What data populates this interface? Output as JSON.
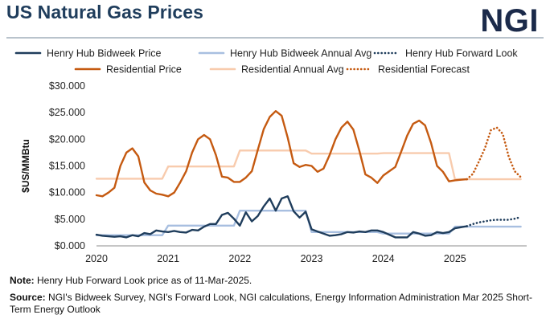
{
  "title": "US Natural Gas Prices",
  "logo_text": "NGI",
  "note": {
    "label": "Note:",
    "text": "Henry Hub Forward Look price as of 11-Mar-2025."
  },
  "source": {
    "label": "Source:",
    "text": "NGI's Bidweek Survey, NGI's Forward Look, NGI calculations, Energy Information Administration Mar 2025 Short-Term Energy Outlook"
  },
  "chart_data": {
    "type": "line",
    "ylabel": "$US/MMBtu",
    "xlabel": "",
    "ylim": [
      0,
      30
    ],
    "xlim": [
      2020.0,
      2026.0
    ],
    "y_ticks": [
      {
        "value": 0,
        "label": "$0.000"
      },
      {
        "value": 5,
        "label": "$5.000"
      },
      {
        "value": 10,
        "label": "$10.000"
      },
      {
        "value": 15,
        "label": "$15.000"
      },
      {
        "value": 20,
        "label": "$20.000"
      },
      {
        "value": 25,
        "label": "$25.000"
      },
      {
        "value": 30,
        "label": "$30.000"
      }
    ],
    "x_ticks": [
      {
        "value": 2020,
        "label": "2020"
      },
      {
        "value": 2021,
        "label": "2021"
      },
      {
        "value": 2022,
        "label": "2022"
      },
      {
        "value": 2023,
        "label": "2023"
      },
      {
        "value": 2024,
        "label": "2024"
      },
      {
        "value": 2025,
        "label": "2025"
      }
    ],
    "grid": false,
    "legend_position": "top",
    "series": [
      {
        "name": "Henry Hub Bidweek Price",
        "color": "#1f3d5c",
        "style": "solid",
        "x": [
          2020.0,
          2020.083,
          2020.167,
          2020.25,
          2020.333,
          2020.417,
          2020.5,
          2020.583,
          2020.667,
          2020.75,
          2020.833,
          2020.917,
          2021.0,
          2021.083,
          2021.167,
          2021.25,
          2021.333,
          2021.417,
          2021.5,
          2021.583,
          2021.667,
          2021.75,
          2021.833,
          2021.917,
          2022.0,
          2022.083,
          2022.167,
          2022.25,
          2022.333,
          2022.417,
          2022.5,
          2022.583,
          2022.667,
          2022.75,
          2022.833,
          2022.917,
          2023.0,
          2023.083,
          2023.167,
          2023.25,
          2023.333,
          2023.417,
          2023.5,
          2023.583,
          2023.667,
          2023.75,
          2023.833,
          2023.917,
          2024.0,
          2024.083,
          2024.167,
          2024.25,
          2024.333,
          2024.417,
          2024.5,
          2024.583,
          2024.667,
          2024.75,
          2024.833,
          2024.917,
          2025.0,
          2025.083,
          2025.167
        ],
        "y": [
          2.1,
          1.9,
          1.8,
          1.7,
          1.8,
          1.6,
          2.0,
          1.8,
          2.4,
          2.2,
          2.9,
          2.7,
          2.6,
          2.8,
          2.6,
          2.5,
          3.0,
          2.9,
          3.6,
          4.1,
          4.1,
          5.8,
          6.2,
          5.1,
          3.8,
          6.3,
          4.6,
          5.6,
          7.4,
          8.9,
          6.6,
          8.9,
          9.3,
          6.5,
          5.3,
          6.4,
          3.1,
          2.7,
          2.3,
          1.9,
          2.0,
          2.2,
          2.6,
          2.5,
          2.7,
          2.6,
          2.9,
          2.9,
          2.6,
          2.1,
          1.6,
          1.6,
          1.6,
          2.6,
          2.3,
          1.9,
          2.0,
          2.6,
          2.4,
          2.6,
          3.3,
          3.5,
          3.7
        ]
      },
      {
        "name": "Henry Hub Bidweek Annual Avg",
        "color": "#a8bfe0",
        "style": "solid",
        "x": [
          2020.0,
          2020.917,
          2021.0,
          2021.917,
          2022.0,
          2022.917,
          2023.0,
          2023.917,
          2024.0,
          2024.917,
          2025.0,
          2025.917
        ],
        "y": [
          2.0,
          2.0,
          3.8,
          3.8,
          6.6,
          6.6,
          2.6,
          2.6,
          2.3,
          2.3,
          3.6,
          3.6
        ]
      },
      {
        "name": "Henry Hub Forward Look",
        "color": "#1f3d5c",
        "style": "dotted",
        "x": [
          2025.167,
          2025.25,
          2025.333,
          2025.417,
          2025.5,
          2025.583,
          2025.667,
          2025.75,
          2025.833,
          2025.917
        ],
        "y": [
          3.7,
          4.1,
          4.4,
          4.6,
          4.8,
          4.9,
          4.9,
          4.9,
          5.1,
          5.4
        ]
      },
      {
        "name": "Residential Price",
        "color": "#c55a11",
        "style": "solid",
        "x": [
          2020.0,
          2020.083,
          2020.167,
          2020.25,
          2020.333,
          2020.417,
          2020.5,
          2020.583,
          2020.667,
          2020.75,
          2020.833,
          2020.917,
          2021.0,
          2021.083,
          2021.167,
          2021.25,
          2021.333,
          2021.417,
          2021.5,
          2021.583,
          2021.667,
          2021.75,
          2021.833,
          2021.917,
          2022.0,
          2022.083,
          2022.167,
          2022.25,
          2022.333,
          2022.417,
          2022.5,
          2022.583,
          2022.667,
          2022.75,
          2022.833,
          2022.917,
          2023.0,
          2023.083,
          2023.167,
          2023.25,
          2023.333,
          2023.417,
          2023.5,
          2023.583,
          2023.667,
          2023.75,
          2023.833,
          2023.917,
          2024.0,
          2024.083,
          2024.167,
          2024.25,
          2024.333,
          2024.417,
          2024.5,
          2024.583,
          2024.667,
          2024.75,
          2024.833,
          2024.917,
          2025.0,
          2025.083,
          2025.167
        ],
        "y": [
          9.5,
          9.3,
          10.0,
          10.9,
          15.0,
          17.5,
          18.3,
          16.8,
          11.9,
          10.4,
          9.8,
          9.6,
          9.3,
          10.0,
          11.9,
          14.0,
          17.5,
          20.0,
          20.8,
          20.0,
          17.0,
          13.0,
          12.8,
          12.0,
          12.0,
          12.8,
          14.0,
          18.0,
          21.9,
          24.2,
          25.3,
          24.4,
          20.3,
          15.5,
          14.8,
          15.2,
          15.0,
          13.9,
          14.5,
          17.0,
          20.0,
          22.2,
          23.3,
          21.8,
          17.8,
          13.4,
          12.8,
          11.8,
          13.2,
          14.0,
          14.8,
          17.7,
          20.7,
          22.9,
          23.5,
          22.6,
          19.3,
          15.0,
          13.9,
          12.1,
          12.3,
          12.4,
          12.5
        ]
      },
      {
        "name": "Residential Annual Avg",
        "color": "#f8cbad",
        "style": "solid",
        "x": [
          2020.0,
          2020.917,
          2021.0,
          2021.917,
          2022.0,
          2022.917,
          2023.0,
          2023.917,
          2024.0,
          2024.917,
          2025.0,
          2025.917
        ],
        "y": [
          12.6,
          12.6,
          14.9,
          14.9,
          17.9,
          17.9,
          17.3,
          17.3,
          17.4,
          17.4,
          12.5,
          12.5
        ]
      },
      {
        "name": "Residential Forecast",
        "color": "#c55a11",
        "style": "dotted",
        "x": [
          2025.167,
          2025.25,
          2025.333,
          2025.417,
          2025.5,
          2025.583,
          2025.667,
          2025.75,
          2025.833,
          2025.917
        ],
        "y": [
          12.5,
          13.5,
          15.8,
          18.3,
          21.7,
          22.2,
          21.0,
          16.7,
          14.0,
          12.9
        ]
      }
    ]
  }
}
